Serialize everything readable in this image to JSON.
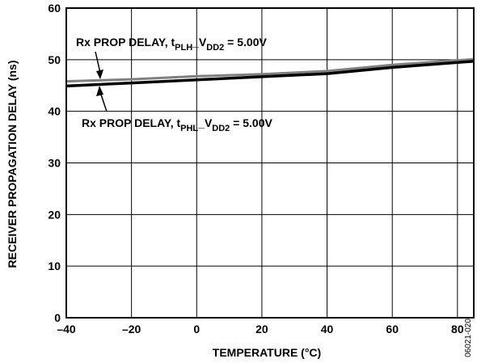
{
  "chart_data": {
    "type": "line",
    "title": "",
    "xlabel": "TEMPERATURE (°C)",
    "ylabel": "RECEIVER PROPAGATION DELAY (ns)",
    "xlim": [
      -40,
      85
    ],
    "ylim": [
      0,
      60
    ],
    "xticks": [
      -40,
      -20,
      0,
      20,
      40,
      60,
      80
    ],
    "yticks": [
      0,
      10,
      20,
      30,
      40,
      50,
      60
    ],
    "xtick_labels": [
      "–40",
      "–20",
      "0",
      "20",
      "40",
      "60",
      "80"
    ],
    "ytick_labels": [
      "0",
      "10",
      "20",
      "30",
      "40",
      "50",
      "60"
    ],
    "grid": true,
    "series": [
      {
        "name": "Rx PROP DELAY, tPLH_VDD2 = 5.00V",
        "color": "#808080",
        "x": [
          -40,
          -20,
          0,
          20,
          40,
          60,
          85
        ],
        "y": [
          45.8,
          46.2,
          46.8,
          47.2,
          47.8,
          49.0,
          50.1
        ]
      },
      {
        "name": "Rx PROP DELAY, tPHL_VDD2 = 5.00V",
        "color": "#000000",
        "x": [
          -40,
          -20,
          0,
          20,
          40,
          60,
          85
        ],
        "y": [
          44.9,
          45.5,
          46.1,
          46.7,
          47.3,
          48.5,
          49.7
        ]
      }
    ],
    "annotations": [
      {
        "prefix": "Rx PROP DELAY, t",
        "sub1": "PLH",
        "mid": "_V",
        "sub2": "DD2",
        "suffix": " = 5.00V"
      },
      {
        "prefix": "Rx PROP DELAY, t",
        "sub1": "PHL",
        "mid": "_V",
        "sub2": "DD2",
        "suffix": " = 5.00V"
      }
    ],
    "figure_id": "06021-020"
  }
}
